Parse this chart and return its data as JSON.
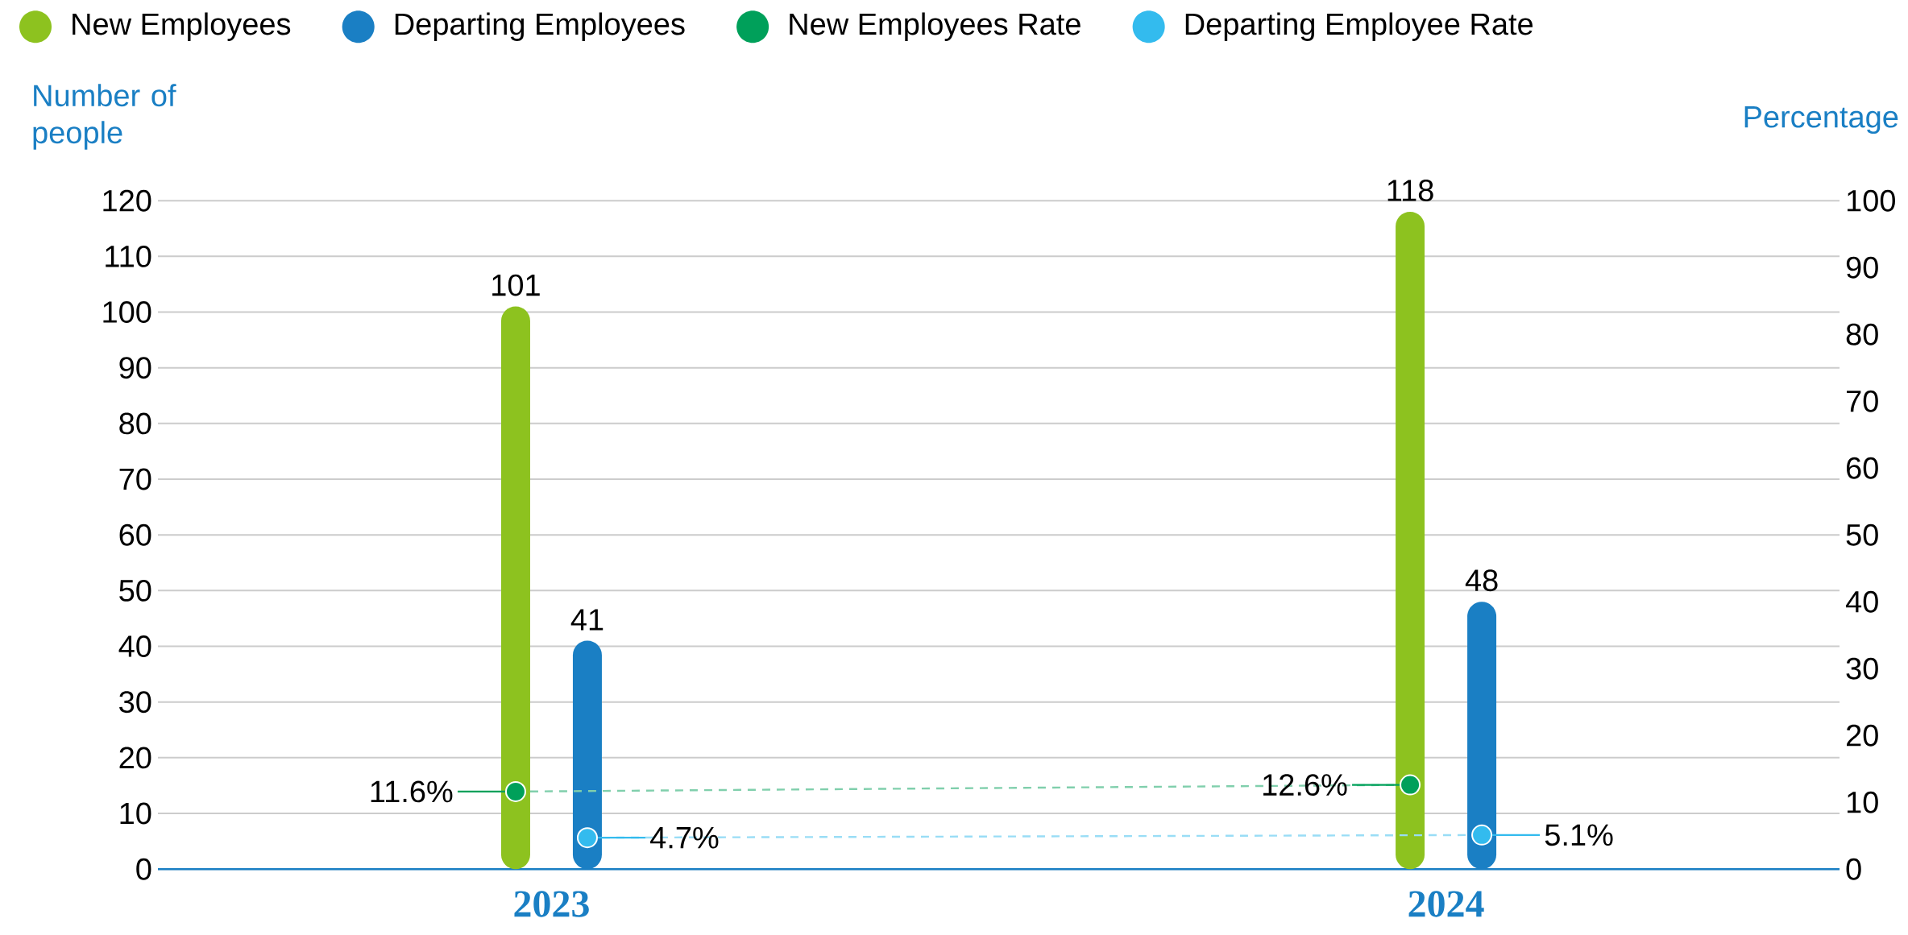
{
  "chart_data": {
    "type": "bar",
    "categories": [
      "2023",
      "2024"
    ],
    "ylabel": "Number of people",
    "y2label": "Percentage",
    "ylim": [
      0,
      120
    ],
    "yticks": [
      0,
      10,
      20,
      30,
      40,
      50,
      60,
      70,
      80,
      90,
      100,
      110,
      120
    ],
    "y2lim": [
      0,
      100
    ],
    "y2ticks": [
      0,
      10,
      20,
      30,
      40,
      50,
      60,
      70,
      80,
      90,
      100
    ],
    "grid": "y",
    "legend": "top left",
    "series": [
      {
        "name": "New Employees",
        "color": "#8dc21f",
        "values": [
          101,
          118
        ],
        "value_labels": [
          "101",
          "118"
        ]
      },
      {
        "name": "Departing Employees",
        "color": "#1a7fc4",
        "values": [
          41,
          48
        ],
        "value_labels": [
          "41",
          "48"
        ]
      },
      {
        "name": "New Employees Rate",
        "type": "line",
        "axis": "y2",
        "color": "#00a05a",
        "marker": "circle",
        "line_style": "dashed",
        "values": [
          11.6,
          12.6
        ],
        "value_labels": [
          "11.6%",
          "12.6%"
        ]
      },
      {
        "name": "Departing Employee Rate",
        "type": "line",
        "axis": "y2",
        "color": "#33bbee",
        "marker": "circle",
        "line_style": "dashed",
        "values": [
          4.7,
          5.1
        ],
        "value_labels": [
          "4.7%",
          "5.1%"
        ]
      }
    ]
  }
}
